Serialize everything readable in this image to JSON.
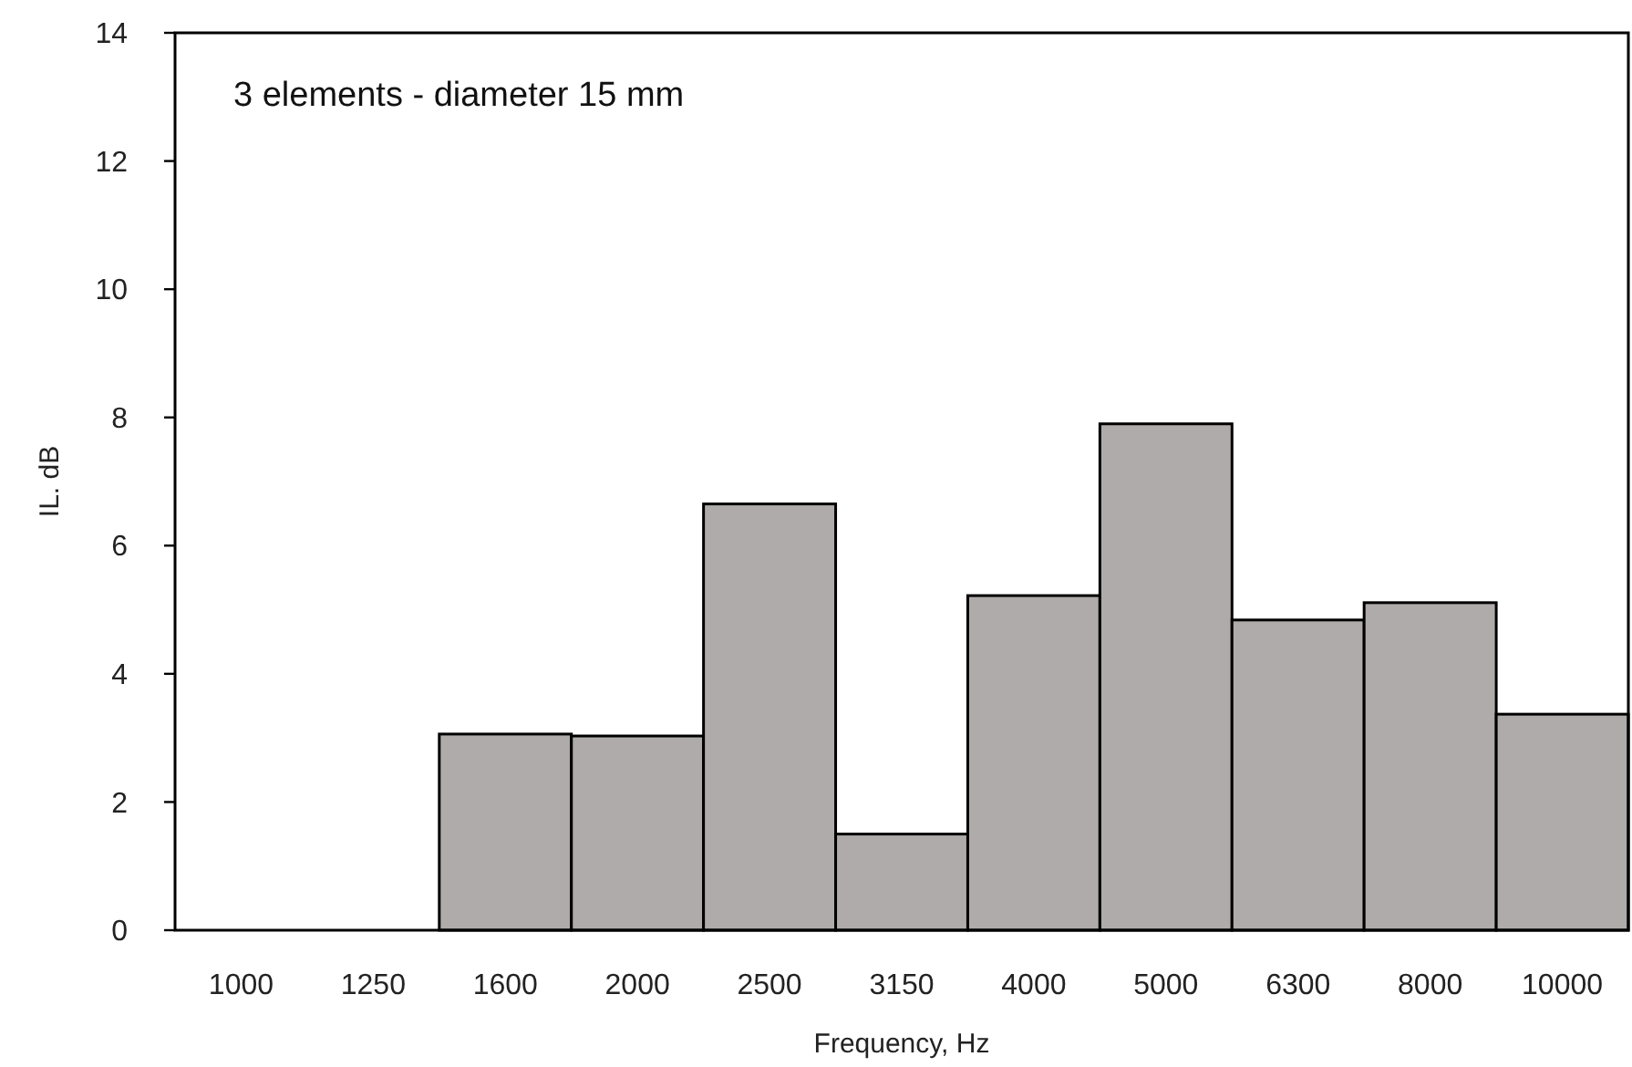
{
  "chart_data": {
    "type": "bar",
    "xlabel": "Frequency, Hz",
    "ylabel": "IL. dB",
    "annotations": [
      "3 elements - diameter 15 mm"
    ],
    "categories": [
      "1000",
      "1250",
      "1600",
      "2000",
      "2500",
      "3150",
      "4000",
      "5000",
      "6300",
      "8000",
      "10000"
    ],
    "values": [
      0,
      0,
      3.06,
      3.03,
      6.65,
      1.5,
      5.22,
      7.9,
      4.84,
      5.11,
      3.37
    ],
    "color": "#afabaa",
    "ylim": [
      0,
      14
    ],
    "yticks": [
      0,
      2,
      4,
      6,
      8,
      10,
      12,
      14
    ],
    "grid": false
  }
}
